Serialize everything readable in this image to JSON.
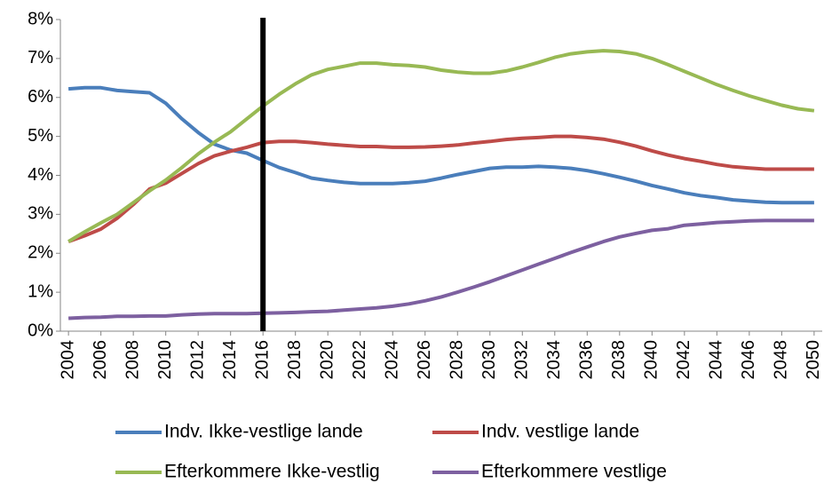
{
  "chart_data": {
    "type": "line",
    "x": [
      2004,
      2005,
      2006,
      2007,
      2008,
      2009,
      2010,
      2011,
      2012,
      2013,
      2014,
      2015,
      2016,
      2017,
      2018,
      2019,
      2020,
      2021,
      2022,
      2023,
      2024,
      2025,
      2026,
      2027,
      2028,
      2029,
      2030,
      2031,
      2032,
      2033,
      2034,
      2035,
      2036,
      2037,
      2038,
      2039,
      2040,
      2041,
      2042,
      2043,
      2044,
      2045,
      2046,
      2047,
      2048,
      2049,
      2050
    ],
    "xlim": [
      2003.5,
      2050.5
    ],
    "xticks": [
      2004,
      2006,
      2008,
      2010,
      2012,
      2014,
      2016,
      2018,
      2020,
      2022,
      2024,
      2026,
      2028,
      2030,
      2032,
      2034,
      2036,
      2038,
      2040,
      2042,
      2044,
      2046,
      2048,
      2050
    ],
    "ylim": [
      0,
      8
    ],
    "yticks": [
      {
        "value": 0,
        "label": "0%"
      },
      {
        "value": 1,
        "label": "1%"
      },
      {
        "value": 2,
        "label": "2%"
      },
      {
        "value": 3,
        "label": "3%"
      },
      {
        "value": 4,
        "label": "4%"
      },
      {
        "value": 5,
        "label": "5%"
      },
      {
        "value": 6,
        "label": "6%"
      },
      {
        "value": 7,
        "label": "7%"
      },
      {
        "value": 8,
        "label": "8%"
      }
    ],
    "grid": false,
    "vline": 2016,
    "series": [
      {
        "name": "Indv. Ikke-vestlige lande",
        "color": "#4a7ebb",
        "values": [
          6.22,
          6.25,
          6.25,
          6.18,
          6.15,
          6.12,
          5.85,
          5.45,
          5.1,
          4.8,
          4.65,
          4.57,
          4.38,
          4.2,
          4.07,
          3.93,
          3.87,
          3.82,
          3.79,
          3.79,
          3.79,
          3.81,
          3.85,
          3.93,
          4.02,
          4.1,
          4.18,
          4.21,
          4.21,
          4.23,
          4.21,
          4.18,
          4.12,
          4.04,
          3.95,
          3.85,
          3.74,
          3.65,
          3.55,
          3.48,
          3.43,
          3.37,
          3.34,
          3.31,
          3.3,
          3.3,
          3.3
        ]
      },
      {
        "name": "Indv. vestlige lande",
        "color": "#be4b48",
        "values": [
          2.3,
          2.45,
          2.62,
          2.9,
          3.25,
          3.65,
          3.8,
          4.05,
          4.3,
          4.5,
          4.62,
          4.72,
          4.84,
          4.87,
          4.87,
          4.84,
          4.8,
          4.77,
          4.74,
          4.74,
          4.72,
          4.72,
          4.73,
          4.75,
          4.78,
          4.83,
          4.87,
          4.92,
          4.95,
          4.97,
          5.0,
          5.0,
          4.97,
          4.93,
          4.85,
          4.75,
          4.63,
          4.52,
          4.43,
          4.36,
          4.28,
          4.22,
          4.19,
          4.16,
          4.16,
          4.16,
          4.16
        ]
      },
      {
        "name": "Efterkommere Ikke-vestlig",
        "color": "#98b954",
        "values": [
          2.3,
          2.55,
          2.78,
          3.0,
          3.3,
          3.6,
          3.88,
          4.2,
          4.55,
          4.85,
          5.12,
          5.45,
          5.78,
          6.08,
          6.35,
          6.58,
          6.72,
          6.8,
          6.88,
          6.88,
          6.84,
          6.82,
          6.78,
          6.7,
          6.65,
          6.62,
          6.62,
          6.68,
          6.78,
          6.9,
          7.03,
          7.12,
          7.17,
          7.2,
          7.18,
          7.12,
          7.0,
          6.84,
          6.67,
          6.5,
          6.33,
          6.18,
          6.04,
          5.92,
          5.8,
          5.71,
          5.66
        ]
      },
      {
        "name": "Efterkommere vestlige",
        "color": "#7d60a0",
        "values": [
          0.33,
          0.35,
          0.36,
          0.38,
          0.38,
          0.39,
          0.39,
          0.42,
          0.44,
          0.45,
          0.45,
          0.45,
          0.46,
          0.47,
          0.48,
          0.5,
          0.51,
          0.54,
          0.57,
          0.6,
          0.64,
          0.7,
          0.78,
          0.88,
          1.0,
          1.13,
          1.27,
          1.42,
          1.57,
          1.72,
          1.87,
          2.02,
          2.16,
          2.3,
          2.42,
          2.51,
          2.59,
          2.63,
          2.72,
          2.75,
          2.79,
          2.81,
          2.83,
          2.84,
          2.84,
          2.84,
          2.84
        ]
      }
    ]
  }
}
